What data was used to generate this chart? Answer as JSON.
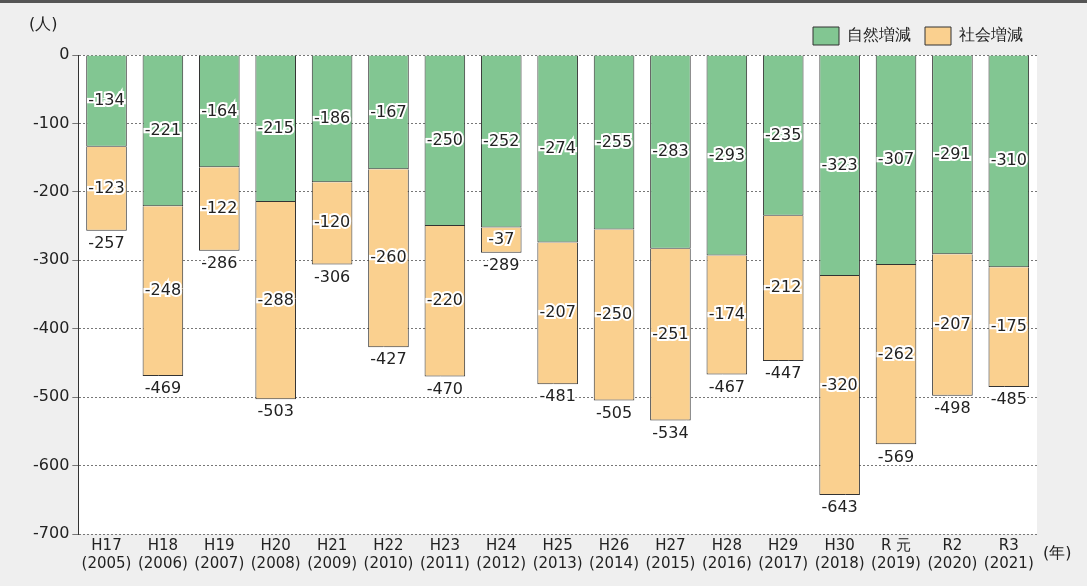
{
  "chart_data": {
    "type": "bar",
    "stacked": true,
    "categories": [
      "H17\n(2005)",
      "H18\n(2006)",
      "H19\n(2007)",
      "H20\n(2008)",
      "H21\n(2009)",
      "H22\n(2010)",
      "H23\n(2011)",
      "H24\n(2012)",
      "H25\n(2013)",
      "H26\n(2014)",
      "H27\n(2015)",
      "H28\n(2016)",
      "H29\n(2017)",
      "H30\n(2018)",
      "R 元\n(2019)",
      "R2\n(2020)",
      "R3\n(2021)"
    ],
    "series": [
      {
        "name": "自然増減",
        "color": "#82c692",
        "values": [
          -134,
          -221,
          -164,
          -215,
          -186,
          -167,
          -250,
          -252,
          -274,
          -255,
          -283,
          -293,
          -235,
          -323,
          -307,
          -291,
          -310
        ]
      },
      {
        "name": "社会増減",
        "color": "#fad08f",
        "values": [
          -123,
          -248,
          -122,
          -288,
          -120,
          -260,
          -220,
          -37,
          -207,
          -250,
          -251,
          -174,
          -212,
          -320,
          -262,
          -207,
          -175
        ]
      }
    ],
    "totals": [
      "-257",
      "-469",
      "-286",
      "-503",
      "-306",
      "-427",
      "-470",
      "-289",
      "-481",
      "-505",
      "-534",
      "-467",
      "-447",
      "-643",
      "-569",
      "-498",
      "-485"
    ],
    "data_labels": true,
    "ylabel": "(人)",
    "xlabel": "(年)",
    "ylim": [
      -700,
      0
    ],
    "yticks": [
      -700,
      -600,
      -500,
      -400,
      -300,
      -200,
      -100,
      0
    ],
    "grid": "y",
    "legend": "top right"
  }
}
